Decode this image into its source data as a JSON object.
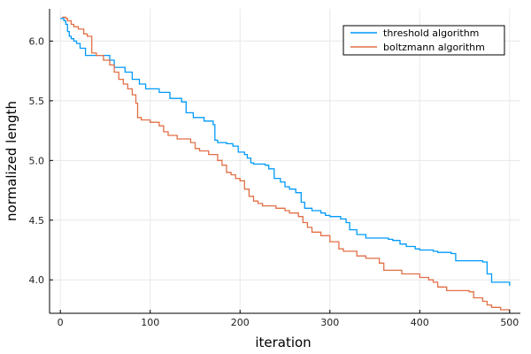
{
  "chart_data": {
    "type": "line",
    "title": "",
    "xlabel": "iteration",
    "ylabel": "normalized length",
    "xlim": [
      -12,
      512
    ],
    "ylim": [
      3.72,
      6.27
    ],
    "xticks": [
      0,
      100,
      200,
      300,
      400,
      500
    ],
    "xtick_labels": [
      "0",
      "100",
      "200",
      "300",
      "400",
      "500"
    ],
    "yticks": [
      4.0,
      4.5,
      5.0,
      5.5,
      6.0
    ],
    "ytick_labels": [
      "4.0",
      "4.5",
      "5.0",
      "5.5",
      "6.0"
    ],
    "grid": true,
    "legend_position": "top-right",
    "series": [
      {
        "name": "threshold algorithm",
        "color": "#009AFA",
        "x": [
          0,
          4,
          6,
          8,
          10,
          12,
          15,
          18,
          22,
          28,
          55,
          60,
          72,
          80,
          88,
          95,
          110,
          122,
          135,
          140,
          148,
          160,
          170,
          172,
          175,
          185,
          192,
          198,
          205,
          208,
          212,
          215,
          228,
          232,
          238,
          245,
          250,
          255,
          262,
          268,
          272,
          280,
          290,
          295,
          300,
          312,
          318,
          322,
          330,
          340,
          365,
          370,
          378,
          385,
          395,
          400,
          415,
          420,
          435,
          440,
          470,
          475,
          480,
          500
        ],
        "y": [
          6.19,
          6.17,
          6.14,
          6.08,
          6.04,
          6.02,
          6.0,
          5.98,
          5.94,
          5.88,
          5.84,
          5.78,
          5.74,
          5.68,
          5.64,
          5.6,
          5.57,
          5.52,
          5.49,
          5.4,
          5.36,
          5.33,
          5.3,
          5.17,
          5.15,
          5.14,
          5.12,
          5.07,
          5.05,
          5.02,
          4.98,
          4.97,
          4.96,
          4.93,
          4.85,
          4.82,
          4.78,
          4.76,
          4.73,
          4.65,
          4.6,
          4.58,
          4.56,
          4.54,
          4.53,
          4.51,
          4.48,
          4.42,
          4.38,
          4.35,
          4.34,
          4.33,
          4.3,
          4.28,
          4.26,
          4.25,
          4.24,
          4.23,
          4.22,
          4.16,
          4.15,
          4.05,
          3.98,
          3.95
        ]
      },
      {
        "name": "boltzmann algorithm",
        "color": "#E26F46",
        "x": [
          2,
          6,
          8,
          12,
          15,
          20,
          26,
          30,
          35,
          40,
          48,
          55,
          60,
          65,
          70,
          75,
          80,
          84,
          86,
          90,
          100,
          110,
          115,
          120,
          130,
          145,
          150,
          155,
          165,
          175,
          180,
          185,
          190,
          195,
          200,
          205,
          210,
          215,
          220,
          225,
          240,
          250,
          255,
          265,
          270,
          275,
          280,
          290,
          300,
          310,
          315,
          330,
          340,
          355,
          360,
          380,
          400,
          410,
          415,
          420,
          430,
          455,
          460,
          470,
          475,
          480,
          490,
          500
        ],
        "y": [
          6.2,
          6.19,
          6.17,
          6.14,
          6.12,
          6.1,
          6.06,
          6.04,
          5.9,
          5.88,
          5.84,
          5.8,
          5.74,
          5.68,
          5.64,
          5.6,
          5.55,
          5.48,
          5.36,
          5.34,
          5.32,
          5.29,
          5.24,
          5.21,
          5.18,
          5.15,
          5.1,
          5.08,
          5.05,
          5.0,
          4.96,
          4.9,
          4.88,
          4.85,
          4.83,
          4.76,
          4.7,
          4.66,
          4.64,
          4.62,
          4.6,
          4.58,
          4.56,
          4.53,
          4.48,
          4.44,
          4.4,
          4.37,
          4.32,
          4.26,
          4.24,
          4.2,
          4.18,
          4.14,
          4.08,
          4.05,
          4.02,
          4.0,
          3.98,
          3.94,
          3.91,
          3.9,
          3.85,
          3.82,
          3.79,
          3.77,
          3.75,
          3.74
        ]
      }
    ]
  }
}
